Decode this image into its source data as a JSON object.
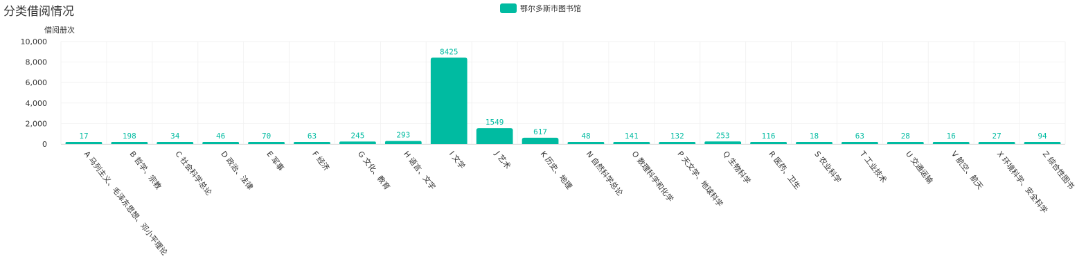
{
  "page": {
    "title": "分类借阅情况"
  },
  "colors": {
    "bar": "#00bba1",
    "grid": "#f2f2f2",
    "axis": "#dddddd",
    "text": "#333333"
  },
  "legend": {
    "items": [
      {
        "label": "鄂尔多斯市图书馆",
        "color": "#00bba1"
      }
    ]
  },
  "chart_data": {
    "type": "bar",
    "title": "分类借阅情况",
    "ylabel": "借阅册次",
    "xlabel": "",
    "ylim": [
      0,
      10000
    ],
    "yticks": [
      0,
      2000,
      4000,
      6000,
      8000,
      10000
    ],
    "ytick_labels": [
      "0",
      "2,000",
      "4,000",
      "6,000",
      "8,000",
      "10,000"
    ],
    "grid": true,
    "legend_position": "top-center",
    "categories": [
      "A 马列主义、毛泽东思想、邓小平理论",
      "B 哲学、宗教",
      "C 社会科学总论",
      "D 政治、法律",
      "E 军事",
      "F 经济",
      "G 文化、教育",
      "H 语言、文字",
      "I 文学",
      "J 艺术",
      "K 历史、地理",
      "N 自然科学总论",
      "O 数理科学和化学",
      "P 天文学、地球科学",
      "Q 生物科学",
      "R 医药、卫生",
      "S 农业科学",
      "T 工业技术",
      "U 交通运输",
      "V 航空、航天",
      "X 环境科学、安全科学",
      "Z 综合性图书"
    ],
    "series": [
      {
        "name": "鄂尔多斯市图书馆",
        "values": [
          17,
          198,
          34,
          46,
          70,
          63,
          245,
          293,
          8425,
          1549,
          617,
          48,
          141,
          132,
          253,
          116,
          18,
          63,
          28,
          16,
          27,
          94
        ]
      }
    ]
  }
}
